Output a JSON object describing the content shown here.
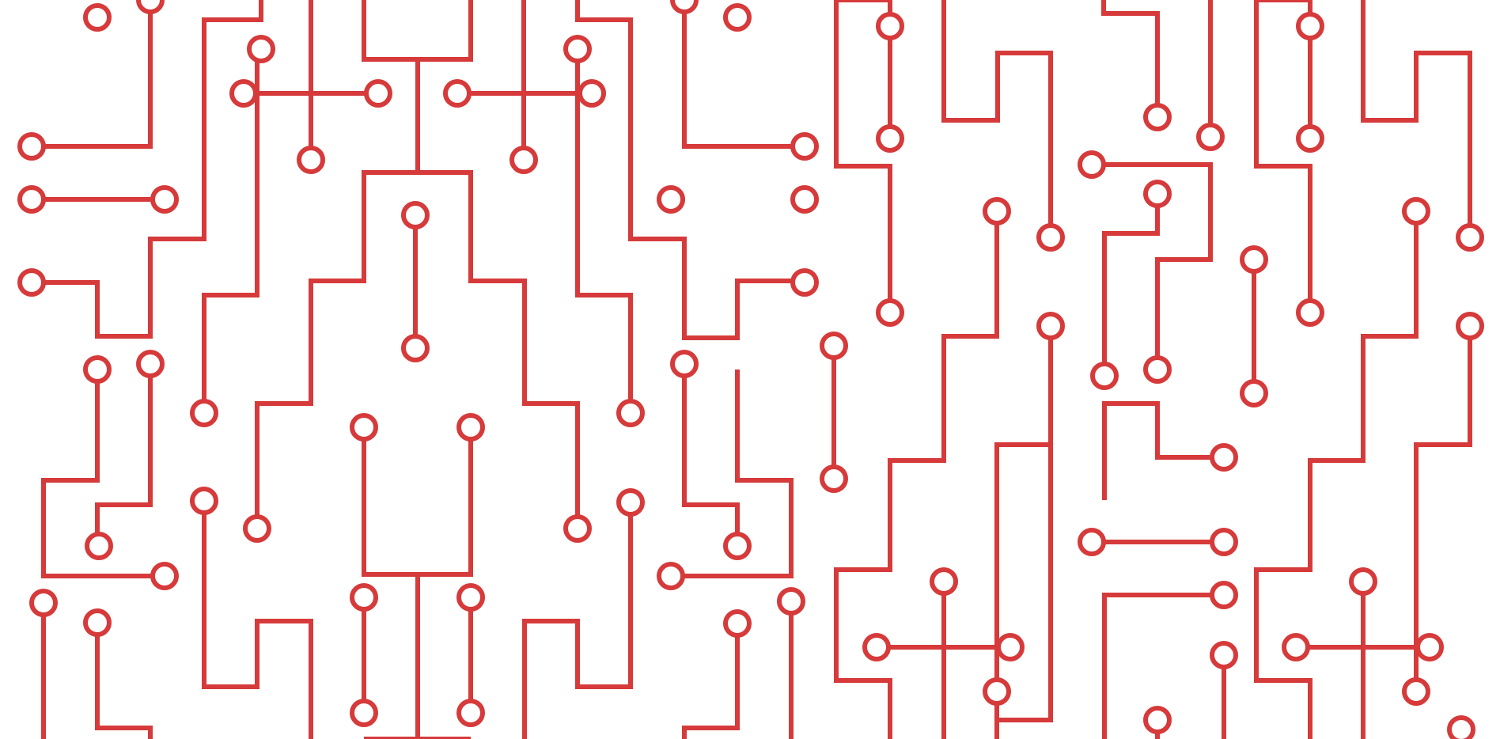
{
  "canvas": {
    "background": "#ffffff",
    "accent": "#d63a3a",
    "pattern": "circuit-board-traces",
    "element_names": [
      "circuit-trace",
      "circuit-pad"
    ]
  }
}
